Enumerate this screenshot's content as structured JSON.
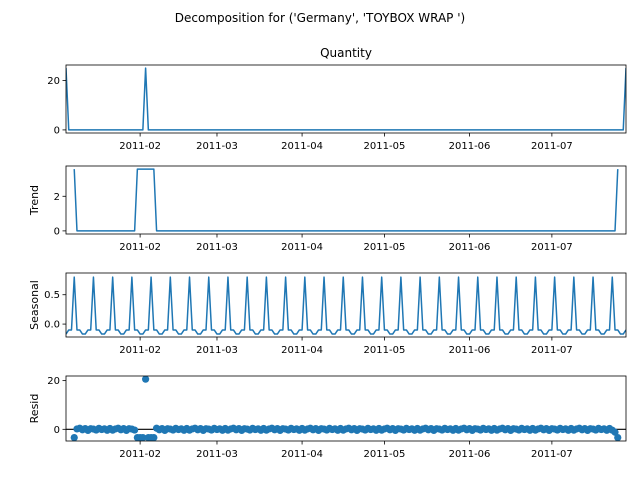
{
  "chart_data": {
    "type": "line",
    "suptitle": "Decomposition for ('Germany', 'TOYBOX  WRAP ')",
    "series_color": "#1f77b4",
    "x_start": "2011-01-05",
    "x_end": "2011-07-28",
    "x_tick_dates": [
      "2011-02-01",
      "2011-03-01",
      "2011-04-01",
      "2011-05-01",
      "2011-06-01",
      "2011-07-01"
    ],
    "x_tick_labels": [
      "2011-02",
      "2011-03",
      "2011-04",
      "2011-05",
      "2011-06",
      "2011-07"
    ],
    "panels": [
      {
        "id": "observed",
        "title": "Quantity",
        "ylabel": "",
        "kind": "line",
        "ylim": [
          -1.25,
          26.25
        ],
        "yticks": [
          0,
          20
        ],
        "ytick_labels": [
          "0",
          "20"
        ],
        "points": [
          [
            "2011-01-05",
            25
          ],
          [
            "2011-01-06",
            0
          ],
          [
            "2011-02-02",
            0
          ],
          [
            "2011-02-03",
            25
          ],
          [
            "2011-02-04",
            0
          ],
          [
            "2011-07-27",
            0
          ],
          [
            "2011-07-28",
            25
          ]
        ]
      },
      {
        "id": "trend",
        "title": "",
        "ylabel": "Trend",
        "kind": "line",
        "ylim": [
          -0.18,
          3.75
        ],
        "yticks": [
          0,
          2
        ],
        "ytick_labels": [
          "0",
          "2"
        ],
        "points": [
          [
            "2011-01-08",
            3.57
          ],
          [
            "2011-01-09",
            0
          ],
          [
            "2011-01-30",
            0
          ],
          [
            "2011-01-31",
            3.57
          ],
          [
            "2011-02-06",
            3.57
          ],
          [
            "2011-02-07",
            0
          ],
          [
            "2011-07-24",
            0
          ],
          [
            "2011-07-25",
            3.57
          ]
        ]
      },
      {
        "id": "seasonal",
        "title": "",
        "ylabel": "Seasonal",
        "kind": "line",
        "ylim": [
          -0.22,
          0.87
        ],
        "yticks": [
          0,
          0.5
        ],
        "ytick_labels": [
          "0.0",
          "0.5"
        ],
        "seasonal_pattern": [
          -0.17,
          -0.1,
          -0.1,
          0.8,
          -0.1,
          -0.1,
          -0.17
        ],
        "seasonal_start": "2011-01-05"
      },
      {
        "id": "resid",
        "title": "",
        "ylabel": "Resid",
        "kind": "scatter",
        "ylim": [
          -4.8,
          21.9
        ],
        "yticks": [
          0,
          20
        ],
        "ytick_labels": [
          "0",
          "20"
        ],
        "zero_line": true,
        "x_range": [
          "2011-01-08",
          "2011-07-25"
        ],
        "base_values": [
          -0.35,
          0.15,
          0.45,
          -0.2,
          0.3,
          -0.45,
          0.25,
          0.1,
          -0.3,
          0.4,
          -0.1,
          0.2,
          -0.4,
          0.35
        ],
        "special_points": [
          [
            "2011-01-08",
            -3.4
          ],
          [
            "2011-01-31",
            -3.4
          ],
          [
            "2011-02-01",
            -3.4
          ],
          [
            "2011-02-02",
            -3.4
          ],
          [
            "2011-02-03",
            20.6
          ],
          [
            "2011-02-04",
            -3.4
          ],
          [
            "2011-02-05",
            -3.4
          ],
          [
            "2011-02-06",
            -3.4
          ],
          [
            "2011-07-24",
            -1.2
          ],
          [
            "2011-07-25",
            -3.4
          ]
        ]
      }
    ]
  }
}
